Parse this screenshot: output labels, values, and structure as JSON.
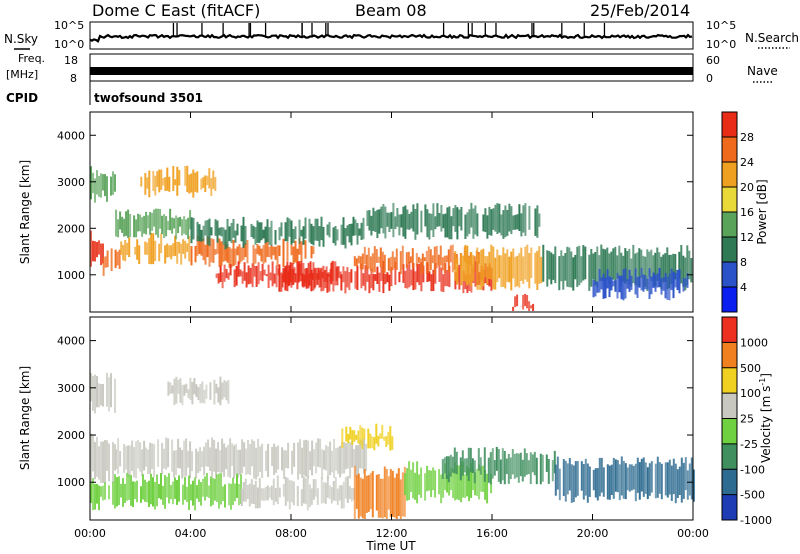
{
  "header": {
    "station": "Dome C East (fitACF)",
    "beam": "Beam 08",
    "date": "25/Feb/2014"
  },
  "top_panels": {
    "nsky_label": "N.Sky",
    "nsky_ticks": [
      "10^5",
      "10^0"
    ],
    "nsearch_label": "N.Search",
    "freq_label": "Freq.",
    "freq_unit": "[MHz]",
    "freq_ticks": [
      "18",
      "8"
    ],
    "nave_label": "Nave",
    "nave_ticks": [
      "60",
      "0"
    ],
    "cpid_label": "CPID",
    "cpid_value": "twofsound 3501"
  },
  "chart_data": [
    {
      "type": "heatmap",
      "name": "power",
      "ylabel": "Slant Range [km]",
      "ylim": [
        200,
        4500
      ],
      "yticks": [
        "1000",
        "2000",
        "3000",
        "4000"
      ],
      "xlim": [
        "00:00",
        "24:00"
      ],
      "colorbar": {
        "label": "Power [dB]",
        "ticks": [
          "4",
          "8",
          "12",
          "16",
          "20",
          "24",
          "28"
        ],
        "colors": [
          "#0a1ef0",
          "#2b52c8",
          "#2f7a55",
          "#5aa35a",
          "#e8d838",
          "#f0a020",
          "#ef6a1c",
          "#e82c18"
        ]
      },
      "echo_regions": [
        {
          "t0": 0.0,
          "t1": 0.5,
          "r0": 1300,
          "r1": 1800,
          "color": "#e83018"
        },
        {
          "t0": 0.5,
          "t1": 1.2,
          "r0": 1100,
          "r1": 1500,
          "color": "#ef6a1c"
        },
        {
          "t0": 1.2,
          "t1": 4.0,
          "r0": 1350,
          "r1": 1750,
          "color": "#f0a020"
        },
        {
          "t0": 4.0,
          "t1": 9.0,
          "r0": 1300,
          "r1": 1700,
          "color": "#ef6a1c"
        },
        {
          "t0": 1.0,
          "t1": 4.0,
          "r0": 1900,
          "r1": 2300,
          "color": "#5aa35a"
        },
        {
          "t0": 4.0,
          "t1": 11.0,
          "r0": 1700,
          "r1": 2100,
          "color": "#2f7a55"
        },
        {
          "t0": 5.0,
          "t1": 10.0,
          "r0": 850,
          "r1": 1150,
          "color": "#e82c18"
        },
        {
          "t0": 7.5,
          "t1": 16.0,
          "r0": 750,
          "r1": 1150,
          "color": "#e82c18"
        },
        {
          "t0": 10.5,
          "t1": 15.5,
          "r0": 1150,
          "r1": 1500,
          "color": "#ef6a1c"
        },
        {
          "t0": 14.5,
          "t1": 18.0,
          "r0": 800,
          "r1": 1500,
          "color": "#f0a020"
        },
        {
          "t0": 16.8,
          "t1": 17.6,
          "r0": 200,
          "r1": 450,
          "color": "#e82c18"
        },
        {
          "t0": 18.0,
          "t1": 24.0,
          "r0": 800,
          "r1": 1500,
          "color": "#2f7a55"
        },
        {
          "t0": 20.0,
          "t1": 23.8,
          "r0": 600,
          "r1": 1000,
          "color": "#2b52c8"
        },
        {
          "t0": 0.0,
          "t1": 1.0,
          "r0": 2700,
          "r1": 3200,
          "color": "#5aa35a"
        },
        {
          "t0": 2.0,
          "t1": 5.0,
          "r0": 2800,
          "r1": 3200,
          "color": "#f0a020"
        },
        {
          "t0": 11.0,
          "t1": 18.0,
          "r0": 1900,
          "r1": 2400,
          "color": "#2f7a55"
        }
      ]
    },
    {
      "type": "heatmap",
      "name": "velocity",
      "ylabel": "Slant Range [km]",
      "ylim": [
        200,
        4500
      ],
      "yticks": [
        "1000",
        "2000",
        "3000",
        "4000"
      ],
      "xlim": [
        "00:00",
        "24:00"
      ],
      "xticks": [
        "00:00",
        "04:00",
        "08:00",
        "12:00",
        "16:00",
        "20:00",
        "00:00"
      ],
      "xlabel": "Time UT",
      "colorbar": {
        "label": "Velocity [m s^-1]",
        "ticks": [
          "1000",
          "500",
          "100",
          "25",
          "-25",
          "-100",
          "-500",
          "-1000"
        ],
        "colors": [
          "#1e3cb4",
          "#2e6b90",
          "#3f8f5f",
          "#6fd040",
          "#c8c8c0",
          "#f0d020",
          "#f08020",
          "#ee3020"
        ]
      },
      "echo_regions": [
        {
          "t0": 0.0,
          "t1": 1.0,
          "r0": 1100,
          "r1": 1900,
          "color": "#c8c8c0"
        },
        {
          "t0": 1.0,
          "t1": 11.0,
          "r0": 1200,
          "r1": 1800,
          "color": "#c8c8c0"
        },
        {
          "t0": 0.0,
          "t1": 6.0,
          "r0": 550,
          "r1": 1050,
          "color": "#6fd040"
        },
        {
          "t0": 6.0,
          "t1": 10.5,
          "r0": 550,
          "r1": 1000,
          "color": "#c8c8c0"
        },
        {
          "t0": 10.5,
          "t1": 12.5,
          "r0": 300,
          "r1": 1200,
          "color": "#f08020"
        },
        {
          "t0": 12.5,
          "t1": 16.0,
          "r0": 700,
          "r1": 1300,
          "color": "#6fd040"
        },
        {
          "t0": 14.0,
          "t1": 18.5,
          "r0": 1100,
          "r1": 1600,
          "color": "#3f8f5f"
        },
        {
          "t0": 18.5,
          "t1": 24.0,
          "r0": 700,
          "r1": 1400,
          "color": "#2e6b90"
        },
        {
          "t0": 0.0,
          "t1": 1.0,
          "r0": 2600,
          "r1": 3200,
          "color": "#c8c8c0"
        },
        {
          "t0": 3.0,
          "t1": 5.5,
          "r0": 2750,
          "r1": 3100,
          "color": "#c8c8c0"
        },
        {
          "t0": 10.0,
          "t1": 12.0,
          "r0": 1800,
          "r1": 2100,
          "color": "#f0d020"
        }
      ]
    }
  ]
}
